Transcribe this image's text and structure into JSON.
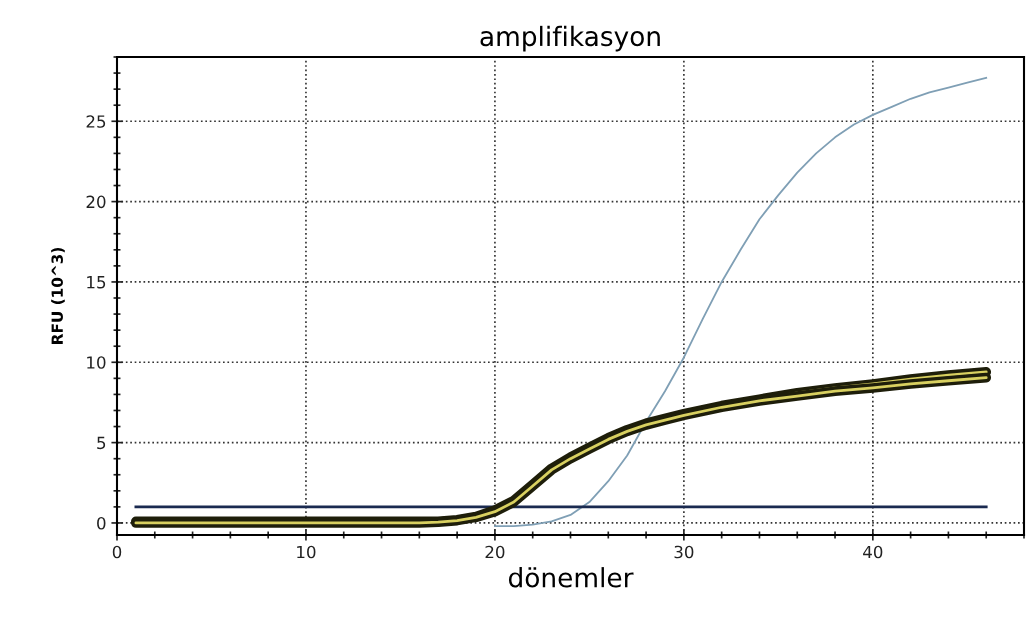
{
  "chart_data": {
    "type": "line",
    "title": "amplifikasyon",
    "xlabel": "dönemler",
    "ylabel": "RFU (10^3)",
    "xlim": [
      0,
      48
    ],
    "ylim": [
      -0.75,
      29
    ],
    "xticks": [
      0,
      10,
      20,
      30,
      40
    ],
    "yticks": [
      0,
      5,
      10,
      15,
      20,
      25
    ],
    "grid": true,
    "line_style": "solid",
    "marker": "none",
    "series": [
      {
        "color": "#7f9fb5",
        "x": [
          20,
          21,
          22,
          23,
          24,
          25,
          26,
          27,
          28,
          29,
          30,
          31,
          32,
          33,
          34,
          35,
          36,
          37,
          38,
          39,
          40,
          41,
          42,
          43,
          44,
          45,
          46
        ],
        "values": [
          -0.2,
          -0.2,
          -0.1,
          0.1,
          0.5,
          1.3,
          2.6,
          4.2,
          6.3,
          8.2,
          10.3,
          12.7,
          15.0,
          17.0,
          18.9,
          20.4,
          21.8,
          23.0,
          24.0,
          24.8,
          25.4,
          25.9,
          26.4,
          26.8,
          27.1,
          27.4,
          27.7
        ]
      },
      {
        "color": "#1e1e0a",
        "x": [
          1,
          5,
          10,
          16,
          17,
          18,
          19,
          20,
          21,
          22,
          23,
          24,
          25,
          26,
          27,
          28,
          29,
          30,
          32,
          34,
          36,
          38,
          40,
          42,
          44,
          46
        ],
        "values": [
          0.1,
          0.1,
          0.1,
          0.1,
          0.1,
          0.2,
          0.4,
          0.8,
          1.4,
          2.4,
          3.4,
          4.1,
          4.7,
          5.3,
          5.8,
          6.2,
          6.5,
          6.8,
          7.3,
          7.7,
          8.1,
          8.4,
          8.65,
          8.95,
          9.2,
          9.4
        ]
      },
      {
        "color": "#1e1e0a",
        "x": [
          1,
          5,
          10,
          16,
          17,
          18,
          19,
          20,
          21,
          22,
          23,
          24,
          25,
          26,
          27,
          28,
          29,
          30,
          32,
          34,
          36,
          38,
          40,
          42,
          44,
          46
        ],
        "values": [
          0.0,
          0.0,
          0.0,
          0.0,
          0.05,
          0.15,
          0.35,
          0.7,
          1.3,
          2.3,
          3.3,
          4.0,
          4.6,
          5.2,
          5.7,
          6.1,
          6.4,
          6.7,
          7.2,
          7.6,
          7.9,
          8.2,
          8.4,
          8.65,
          8.85,
          9.05
        ]
      },
      {
        "color": "#1a2a50",
        "x": [
          1,
          46
        ],
        "values": [
          1,
          1
        ]
      }
    ]
  }
}
